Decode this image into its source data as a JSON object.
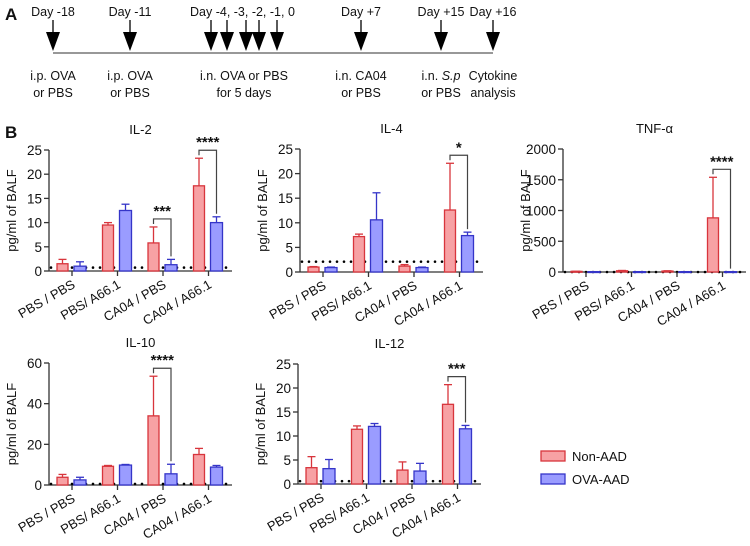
{
  "panel_labels": {
    "a": "A",
    "b": "B"
  },
  "timeline": {
    "events": [
      {
        "day": "Day -18",
        "desc1": "i.p. OVA",
        "desc2": "or PBS"
      },
      {
        "day": "Day -11",
        "desc1": "i.p. OVA",
        "desc2": "or PBS"
      },
      {
        "day": "Day -4, -3, -2, -1, 0",
        "desc1": "i.n. OVA or PBS",
        "desc2": "for 5 days"
      },
      {
        "day": "Day +7",
        "desc1": "i.n. CA04",
        "desc2": "or PBS"
      },
      {
        "day": "Day +15",
        "desc1": "i.n. ",
        "desc1_italic": "S.p",
        "desc2": "or PBS"
      },
      {
        "day": "Day +16",
        "desc1": "Cytokine",
        "desc2": "analysis"
      }
    ]
  },
  "legend": {
    "items": [
      {
        "label": "Non-AAD",
        "fill": "#f7a1a4",
        "stroke": "#d8353c"
      },
      {
        "label": "OVA-AAD",
        "fill": "#9a9cff",
        "stroke": "#3535c8"
      }
    ]
  },
  "chart_data": [
    {
      "type": "bar",
      "title": "IL-2",
      "ylabel": "pg/ml of BALF",
      "ylim": [
        0,
        25
      ],
      "yticks": [
        "0",
        "5",
        "10",
        "15",
        "20",
        "25"
      ],
      "ytick_values": [
        0,
        5,
        10,
        15,
        20,
        25
      ],
      "categories": [
        "PBS / PBS",
        "PBS/ A66.1",
        "CA04 / PBS",
        "CA04 / A66.1"
      ],
      "series": [
        {
          "name": "Non-AAD",
          "values": [
            1.5,
            9.5,
            5.8,
            17.6
          ],
          "err_upper": [
            2.4,
            10.0,
            9.1,
            23.3
          ]
        },
        {
          "name": "OVA-AAD",
          "values": [
            1.0,
            12.5,
            1.3,
            10.0
          ],
          "err_upper": [
            1.9,
            13.8,
            2.4,
            11.2
          ]
        }
      ],
      "detection_limit": 0.7,
      "significance": [
        {
          "category": 2,
          "label": "***"
        },
        {
          "category": 3,
          "label": "****"
        }
      ]
    },
    {
      "type": "bar",
      "title": "IL-4",
      "ylabel": "pg/ml of BALF",
      "ylim": [
        0,
        25
      ],
      "yticks": [
        "0",
        "5",
        "10",
        "15",
        "20",
        "25"
      ],
      "ytick_values": [
        0,
        5,
        10,
        15,
        20,
        25
      ],
      "categories": [
        "PBS / PBS",
        "PBS/ A66.1",
        "CA04 / PBS",
        "CA04 / A66.1"
      ],
      "series": [
        {
          "name": "Non-AAD",
          "values": [
            1.0,
            7.2,
            1.2,
            12.6
          ],
          "err_upper": [
            1.1,
            7.7,
            1.5,
            22.1
          ]
        },
        {
          "name": "OVA-AAD",
          "values": [
            0.9,
            10.6,
            0.9,
            7.4
          ],
          "err_upper": [
            1.0,
            16.1,
            1.0,
            8.1
          ]
        }
      ],
      "detection_limit": 2.1,
      "significance": [
        {
          "category": 3,
          "label": "*"
        }
      ]
    },
    {
      "type": "bar",
      "title": "TNF-α",
      "ylabel": "pg/ml of BALF",
      "ylim": [
        0,
        2000
      ],
      "yticks": [
        "0",
        "500",
        "1000",
        "1500",
        "2000"
      ],
      "ytick_values": [
        0,
        500,
        1000,
        1500,
        2000
      ],
      "categories": [
        "PBS / PBS",
        "PBS/ A66.1",
        "CA04 / PBS",
        "CA04 / A66.1"
      ],
      "series": [
        {
          "name": "Non-AAD",
          "values": [
            10,
            20,
            15,
            880
          ],
          "err_upper": [
            12,
            25,
            20,
            1540
          ]
        },
        {
          "name": "OVA-AAD",
          "values": [
            5,
            5,
            5,
            5
          ],
          "err_upper": [
            6,
            6,
            6,
            6
          ]
        }
      ],
      "detection_limit": 0,
      "significance": [
        {
          "category": 3,
          "label": "****"
        }
      ]
    },
    {
      "type": "bar",
      "title": "IL-10",
      "ylabel": "pg/ml of BALF",
      "ylim": [
        0,
        60
      ],
      "yticks": [
        "0",
        "20",
        "40",
        "60"
      ],
      "ytick_values": [
        0,
        20,
        40,
        60
      ],
      "categories": [
        "PBS / PBS",
        "PBS/ A66.1",
        "CA04 / PBS",
        "CA04 / A66.1"
      ],
      "series": [
        {
          "name": "Non-AAD",
          "values": [
            3.8,
            9.2,
            34.0,
            15.0
          ],
          "err_upper": [
            5.2,
            9.6,
            53.5,
            18.0
          ]
        },
        {
          "name": "OVA-AAD",
          "values": [
            2.5,
            9.8,
            5.5,
            8.8
          ],
          "err_upper": [
            3.8,
            10.1,
            10.2,
            9.6
          ]
        }
      ],
      "detection_limit": 0.5,
      "significance": [
        {
          "category": 2,
          "label": "****"
        }
      ]
    },
    {
      "type": "bar",
      "title": "IL-12",
      "ylabel": "pg/ml of BALF",
      "ylim": [
        0,
        25
      ],
      "yticks": [
        "0",
        "5",
        "10",
        "15",
        "20",
        "25"
      ],
      "ytick_values": [
        0,
        5,
        10,
        15,
        20,
        25
      ],
      "categories": [
        "PBS / PBS",
        "PBS/ A66.1",
        "CA04 / PBS",
        "CA04 / A66.1"
      ],
      "series": [
        {
          "name": "Non-AAD",
          "values": [
            3.4,
            11.4,
            2.9,
            16.6
          ],
          "err_upper": [
            5.7,
            12.1,
            4.6,
            20.7
          ]
        },
        {
          "name": "OVA-AAD",
          "values": [
            3.2,
            12.0,
            2.7,
            11.5
          ],
          "err_upper": [
            5.1,
            12.6,
            4.3,
            12.2
          ]
        }
      ],
      "detection_limit": 0.6,
      "significance": [
        {
          "category": 3,
          "label": "***"
        }
      ]
    }
  ]
}
